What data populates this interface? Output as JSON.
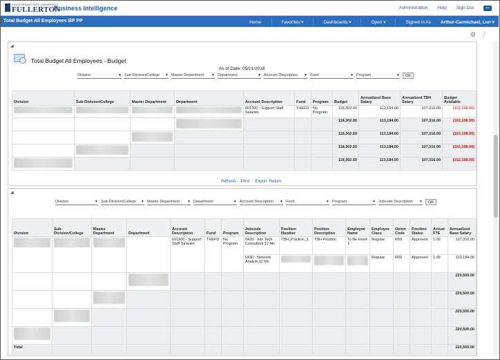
{
  "brand": {
    "logo_line1": "CALIFORNIA STATE UNIVERSITY",
    "logo_line2": "FULLERTON",
    "app_title": "Business Intelligence"
  },
  "toplinks": {
    "administration": "Administration",
    "help": "Help",
    "sign_out": "Sign Out",
    "extra": "•••"
  },
  "nav": {
    "page_title": "Total Budget All Employees BP PP",
    "home": "Home",
    "favorites": "Favorites ▾",
    "dashboards": "Dashboards ▾",
    "open": "Open ▾",
    "signed_in_label": "Signed In As",
    "user": "Arthur-Carmichael, Lori ▾"
  },
  "report1": {
    "title": "Total Budget All Employees - Budget",
    "as_of": "As of Date: 05/21/2018",
    "prompts": [
      "Division",
      "Sub-Division/College",
      "Master Department",
      "Department",
      "Account Description",
      "Fund",
      "Program"
    ],
    "ok": "OK",
    "columns": [
      "Division",
      "Sub-Division/College",
      "Master Department",
      "Department",
      "Account Description",
      "Fund",
      "Program",
      "Budget",
      "Annualized Base Salary",
      "Annualized TBH Salary",
      "Budget Available"
    ],
    "row1": {
      "account": "601300 - Support Staff Salaries",
      "fund": "THEFD",
      "program": "No Program",
      "budget": "118,302.00",
      "base": "113,184.00",
      "tbh": "107,316.00",
      "avail": "(102,198.00)"
    },
    "subtotals": [
      {
        "budget": "118,302.00",
        "base": "113,184.00",
        "tbh": "107,316.00",
        "avail": "(102,198.00)"
      },
      {
        "budget": "118,302.00",
        "base": "113,184.00",
        "tbh": "107,316.00",
        "avail": "(102,198.00)"
      },
      {
        "budget": "118,302.00",
        "base": "113,184.00",
        "tbh": "107,316.00",
        "avail": "(102,198.00)"
      },
      {
        "budget": "118,302.00",
        "base": "113,184.00",
        "tbh": "107,316.00",
        "avail": "(102,198.00)"
      }
    ],
    "links": {
      "refresh": "Refresh",
      "print": "Print",
      "export": "Export",
      "return": "Return",
      "sep": "-"
    }
  },
  "report2": {
    "prompts": [
      "Division",
      "Sub-Division/College",
      "Master Department",
      "Department",
      "Account Description",
      "Fund",
      "Program",
      "Jobcode Description"
    ],
    "ok": "OK",
    "columns": [
      "Division",
      "Sub-Division/College",
      "Master Department",
      "Department",
      "Account Description",
      "Fund",
      "Program",
      "Jobcode Description",
      "Position Number",
      "Position Description",
      "Employee Name",
      "Employee Class",
      "Union Code",
      "Position Status",
      "Actual FTE",
      "Annualized Base Salary"
    ],
    "row1": {
      "account": "601300 - Support Staff Salaries",
      "fund": "THEFD",
      "program": "No Program",
      "jobcode": "0420 - Info Tech Consultant 12 Mo",
      "posnum": "TBH_Position_1",
      "posdesc": "TBH Position",
      "empname": "To Be Hired 1",
      "class": "Regular",
      "union": "R09",
      "status": "Approved",
      "fte": "1.00",
      "salary": "107,316.00"
    },
    "row2": {
      "jobcode": "0430 - Network Analyst 12 Mo",
      "class": "Regular",
      "union": "R09",
      "status": "Approved",
      "fte": "1.00",
      "salary": "113,184.00"
    },
    "subtotals": [
      "220,500.00",
      "220,500.00",
      "220,500.00",
      "220,500.00"
    ],
    "total_label": "Total",
    "total": "220,500.00"
  }
}
